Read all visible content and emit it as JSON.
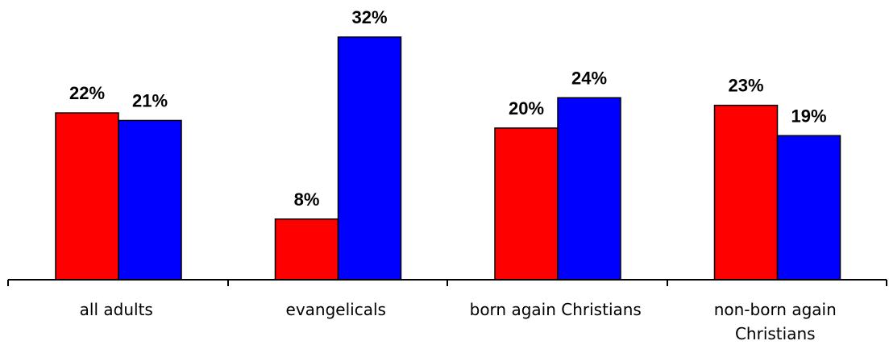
{
  "chart_data": {
    "type": "bar",
    "categories": [
      "all adults",
      "evangelicals",
      "born again Christians",
      "non-born again Christians"
    ],
    "category_lines": [
      [
        "all adults"
      ],
      [
        "evangelicals"
      ],
      [
        "born again Christians"
      ],
      [
        "non-born again",
        "Christians"
      ]
    ],
    "series": [
      {
        "values": [
          22,
          8,
          20,
          23
        ],
        "labels": [
          "22%",
          "8%",
          "20%",
          "23%"
        ],
        "color": "#ff0000"
      },
      {
        "values": [
          21,
          32,
          24,
          19
        ],
        "labels": [
          "21%",
          "32%",
          "24%",
          "19%"
        ],
        "color": "#0000ff"
      }
    ],
    "ylim": [
      0,
      34
    ],
    "grid": false,
    "legend": "none",
    "unit": "%"
  }
}
